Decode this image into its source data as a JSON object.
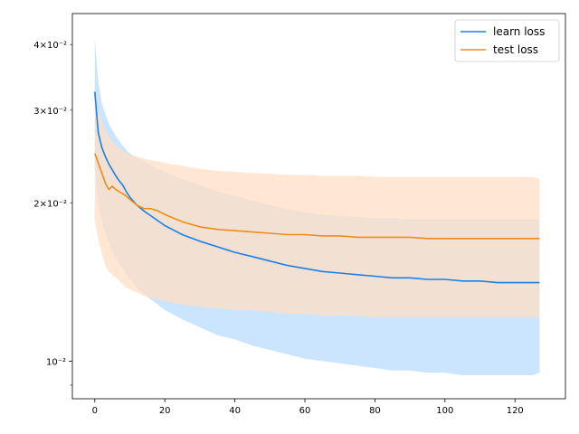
{
  "chart_data": {
    "type": "line",
    "title": "",
    "xlabel": "",
    "ylabel": "",
    "xlim": [
      -6.4,
      134.4
    ],
    "ylim": [
      0.00848,
      0.0458
    ],
    "yscale": "log",
    "grid": false,
    "legend_position": "top-right",
    "x_ticks": [
      0,
      20,
      40,
      60,
      80,
      100,
      120
    ],
    "x_tick_labels": [
      "0",
      "20",
      "40",
      "60",
      "80",
      "100",
      "120"
    ],
    "y_major_ticks": [
      0.01
    ],
    "y_major_tick_labels": [
      "10⁻²"
    ],
    "y_minor_ticks": [
      0.02,
      0.03,
      0.04
    ],
    "y_minor_tick_labels": [
      "2×10⁻²",
      "3×10⁻²",
      "4×10⁻²"
    ],
    "y_minor_ticks_unlabeled": [
      0.009
    ],
    "x": [
      0,
      1,
      2,
      3,
      4,
      5,
      6,
      7,
      8,
      9,
      10,
      12,
      14,
      16,
      18,
      20,
      25,
      30,
      35,
      40,
      45,
      50,
      55,
      60,
      65,
      70,
      75,
      80,
      85,
      90,
      95,
      100,
      105,
      110,
      115,
      120,
      125,
      127
    ],
    "series": [
      {
        "name": "learn loss",
        "color": "#1a80e6",
        "band_color": "#cce5ff",
        "values": [
          0.0325,
          0.0272,
          0.0255,
          0.0245,
          0.0237,
          0.0231,
          0.0225,
          0.022,
          0.0216,
          0.021,
          0.0205,
          0.0198,
          0.0193,
          0.0189,
          0.0185,
          0.0181,
          0.0174,
          0.0169,
          0.0165,
          0.0161,
          0.0158,
          0.0155,
          0.0152,
          0.015,
          0.0148,
          0.0147,
          0.0146,
          0.0145,
          0.0144,
          0.0144,
          0.0143,
          0.0143,
          0.0142,
          0.0142,
          0.0141,
          0.0141,
          0.0141,
          0.0141
        ],
        "lower": [
          0.0235,
          0.0198,
          0.0185,
          0.0175,
          0.0168,
          0.0162,
          0.0157,
          0.0153,
          0.015,
          0.0146,
          0.0143,
          0.0138,
          0.0134,
          0.0131,
          0.0128,
          0.0125,
          0.012,
          0.0116,
          0.0112,
          0.011,
          0.0107,
          0.0105,
          0.0103,
          0.0101,
          0.01,
          0.0099,
          0.0098,
          0.0097,
          0.0096,
          0.0096,
          0.0095,
          0.0095,
          0.0094,
          0.0094,
          0.0094,
          0.0094,
          0.0094,
          0.0095
        ],
        "upper": [
          0.0412,
          0.034,
          0.031,
          0.0295,
          0.0283,
          0.0275,
          0.0268,
          0.0262,
          0.0257,
          0.0252,
          0.0248,
          0.0244,
          0.024,
          0.0236,
          0.0232,
          0.0229,
          0.0222,
          0.0216,
          0.021,
          0.0206,
          0.0202,
          0.0198,
          0.0195,
          0.0192,
          0.019,
          0.0189,
          0.0188,
          0.0187,
          0.0187,
          0.0186,
          0.0186,
          0.0186,
          0.0186,
          0.0186,
          0.0186,
          0.0186,
          0.0186,
          0.0186
        ]
      },
      {
        "name": "test loss",
        "color": "#f28a1a",
        "band_color": "#ffdfc4",
        "values": [
          0.0248,
          0.0238,
          0.0228,
          0.0218,
          0.0212,
          0.0215,
          0.0212,
          0.021,
          0.0208,
          0.0206,
          0.0203,
          0.0198,
          0.0195,
          0.0195,
          0.0193,
          0.019,
          0.0184,
          0.018,
          0.0178,
          0.0177,
          0.0176,
          0.0175,
          0.0174,
          0.0174,
          0.0173,
          0.0173,
          0.0172,
          0.0172,
          0.0172,
          0.0172,
          0.0171,
          0.0171,
          0.0171,
          0.0171,
          0.0171,
          0.0171,
          0.0171,
          0.0171
        ],
        "lower": [
          0.0185,
          0.017,
          0.016,
          0.0152,
          0.0148,
          0.0146,
          0.0144,
          0.0142,
          0.014,
          0.0138,
          0.0137,
          0.0135,
          0.0133,
          0.0132,
          0.0131,
          0.013,
          0.0128,
          0.0127,
          0.0126,
          0.0125,
          0.0125,
          0.0124,
          0.0123,
          0.0123,
          0.0122,
          0.0122,
          0.0122,
          0.0121,
          0.0121,
          0.0121,
          0.0121,
          0.0121,
          0.0121,
          0.0121,
          0.0121,
          0.0121,
          0.0121,
          0.0121
        ],
        "upper": [
          0.032,
          0.03,
          0.0285,
          0.0275,
          0.0268,
          0.0262,
          0.0258,
          0.0254,
          0.0251,
          0.0249,
          0.0247,
          0.0245,
          0.0243,
          0.0241,
          0.024,
          0.0238,
          0.0235,
          0.0232,
          0.023,
          0.0229,
          0.0228,
          0.0227,
          0.0226,
          0.0226,
          0.0225,
          0.0225,
          0.0225,
          0.0224,
          0.0224,
          0.0224,
          0.0224,
          0.0224,
          0.0224,
          0.0224,
          0.0224,
          0.0224,
          0.0224,
          0.0222
        ]
      }
    ]
  }
}
